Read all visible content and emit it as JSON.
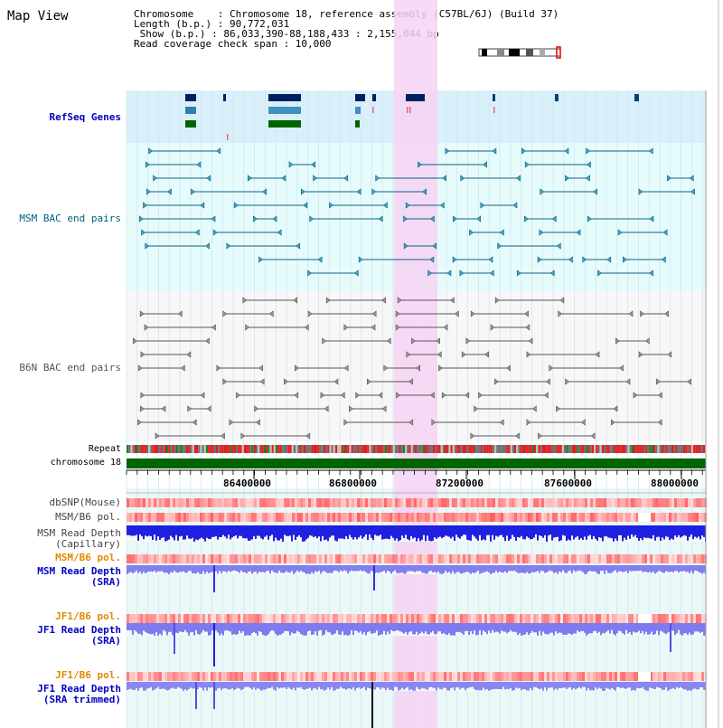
{
  "title": "Map View",
  "header": {
    "chromosome": "Chromosome    : Chromosome 18, reference assembly (C57BL/6J) (Build 37)",
    "length": "Length (b.p.) : 90,772,031",
    "show": " Show (b.p.) : 86,033,390-88,188,433 : 2,155,044 bp",
    "span": "Read coverage check span : 10,000"
  },
  "tracks": {
    "refseq": "RefSeq Genes",
    "msm_bac": "MSM BAC end pairs",
    "b6n_bac": "B6N BAC end pairs",
    "repeat": "Repeat",
    "chromosome": "chromosome 18",
    "dbsnp": "dbSNP(Mouse)",
    "msm_b6_pol_1": "MSM/B6 pol.",
    "msm_depth_cap_1": "MSM Read Depth",
    "msm_depth_cap_2": "(Capillary)",
    "msm_b6_pol_2": "MSM/B6 pol.",
    "msm_depth_sra_1": "MSM Read Depth",
    "msm_depth_sra_2": "(SRA)",
    "jf1_b6_pol_1": "JF1/B6 pol.",
    "jf1_depth_sra_1": "JF1 Read Depth",
    "jf1_depth_sra_2": "(SRA)",
    "jf1_b6_pol_2": "JF1/B6 pol.",
    "jf1_depth_trim_1": "JF1 Read Depth",
    "jf1_depth_trim_2": "(SRA trimmed)"
  },
  "axis": {
    "ticks": [
      "86400000",
      "86800000",
      "87200000",
      "87600000",
      "88000000"
    ]
  },
  "colors": {
    "refseq_bg": "#d9f0fb",
    "msm_bg": "#e6fbfb",
    "b6n_bg": "#f7f7f7",
    "highlight": "#f6d3f3",
    "chrom_green": "#006400",
    "depth_blue": "#2020e0",
    "depth_lavender": "#7c7cf0",
    "label_blue": "#0000c0",
    "label_orange": "#e08a00"
  }
}
